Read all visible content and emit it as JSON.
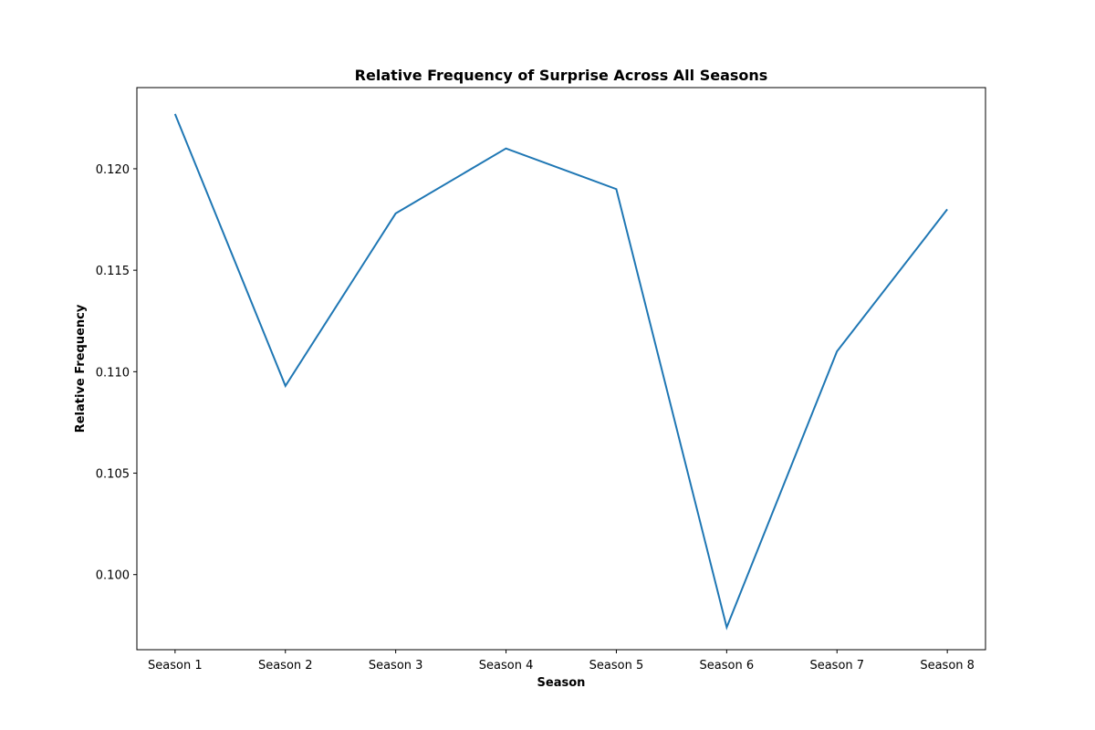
{
  "chart_data": {
    "type": "line",
    "title": "Relative Frequency of Surprise Across All Seasons",
    "xlabel": "Season",
    "ylabel": "Relative Frequency",
    "categories": [
      "Season 1",
      "Season 2",
      "Season 3",
      "Season 4",
      "Season 5",
      "Season 6",
      "Season 7",
      "Season 8"
    ],
    "series": [
      {
        "values": [
          0.1227,
          0.1093,
          0.1178,
          0.121,
          0.119,
          0.0974,
          0.111,
          0.118
        ]
      }
    ],
    "ylim": [
      0.0963,
      0.124
    ],
    "yticks": [
      0.1,
      0.105,
      0.11,
      0.115,
      0.12
    ],
    "ytick_labels": [
      "0.100",
      "0.105",
      "0.110",
      "0.115",
      "0.120"
    ],
    "grid": false,
    "legend": "none",
    "colors": {
      "line": "#1f77b4",
      "axes": "#000000",
      "background": "#ffffff"
    }
  }
}
